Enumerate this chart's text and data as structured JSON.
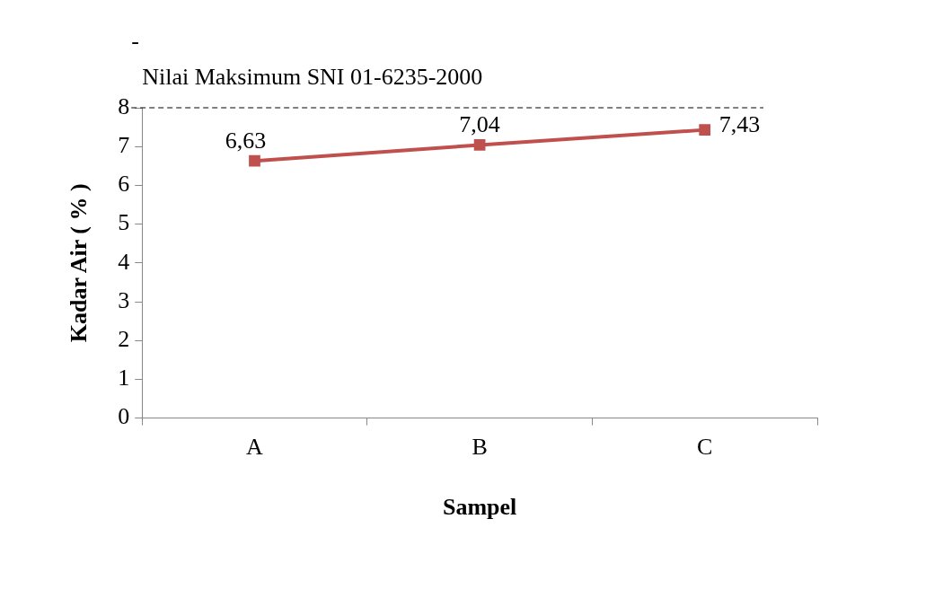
{
  "chart_data": {
    "type": "line",
    "xlabel": "Sampel",
    "ylabel": "Kadar Air ( % )",
    "categories": [
      "A",
      "B",
      "C"
    ],
    "series": [
      {
        "color": "#c0504d",
        "values": [
          6.63,
          7.04,
          7.43
        ],
        "value_labels": [
          "6,63",
          "7,04",
          "7,43"
        ]
      }
    ],
    "ylim": [
      0,
      8
    ],
    "yticks": [
      0,
      1,
      2,
      3,
      4,
      5,
      6,
      7,
      8
    ],
    "grid": false,
    "legend": false,
    "marker": "square",
    "line_style": "solid",
    "ref_lines": [
      {
        "axis": "y",
        "value": 8,
        "label": "Nilai Maksimum SNI 01-6235-2000",
        "color": "#000000",
        "line_style": "dashed"
      }
    ],
    "annotations": [
      "-"
    ]
  }
}
